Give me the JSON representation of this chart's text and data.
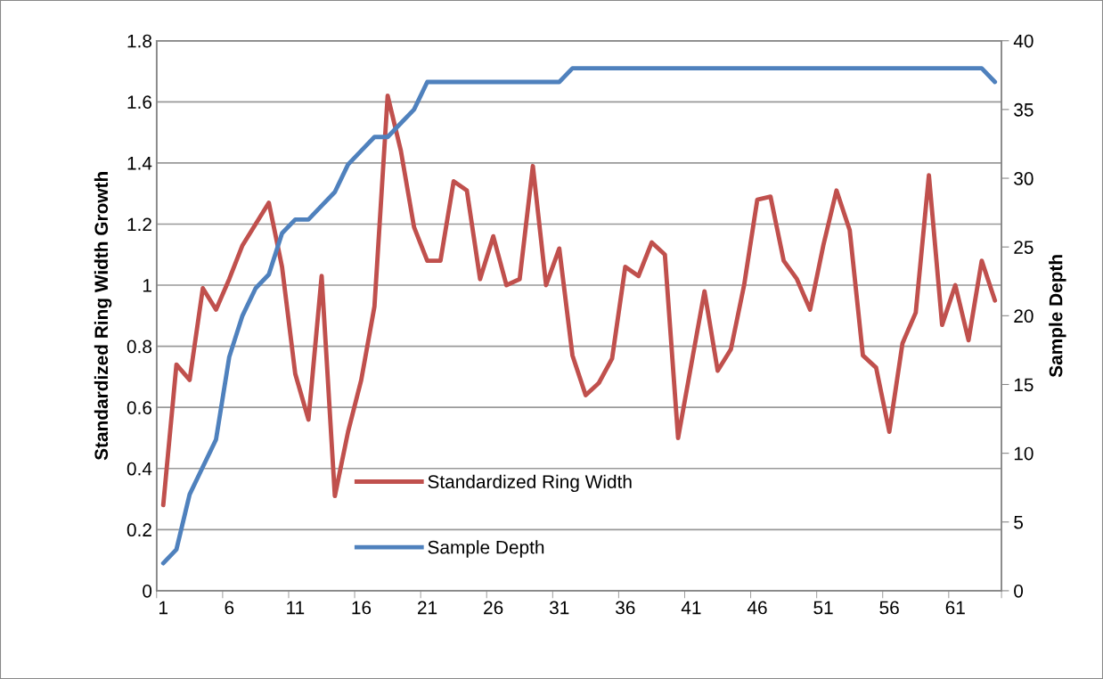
{
  "chart_data": {
    "type": "line",
    "categories": [
      "1",
      null,
      null,
      null,
      null,
      "6",
      null,
      null,
      null,
      null,
      "11",
      null,
      null,
      null,
      null,
      "16",
      null,
      null,
      null,
      null,
      "21",
      null,
      null,
      null,
      null,
      "26",
      null,
      null,
      null,
      null,
      "31",
      null,
      null,
      null,
      null,
      "36",
      null,
      null,
      null,
      null,
      "41",
      null,
      null,
      null,
      null,
      "46",
      null,
      null,
      null,
      null,
      "51",
      null,
      null,
      null,
      null,
      "56",
      null,
      null,
      null,
      null,
      "61",
      null,
      null,
      null
    ],
    "ylabel": "Standardized Ring Width Growth",
    "y2label": "Sample Depth",
    "ylim": [
      0,
      1.8
    ],
    "yticks": [
      {
        "value": 0,
        "label": "0"
      },
      {
        "value": 0.2,
        "label": "0.2"
      },
      {
        "value": 0.4,
        "label": "0.4"
      },
      {
        "value": 0.6,
        "label": "0.6"
      },
      {
        "value": 0.8,
        "label": "0.8"
      },
      {
        "value": 1,
        "label": "1"
      },
      {
        "value": 1.2,
        "label": "1.2"
      },
      {
        "value": 1.4,
        "label": "1.4"
      },
      {
        "value": 1.6,
        "label": "1.6"
      },
      {
        "value": 1.8,
        "label": "1.8"
      }
    ],
    "y2lim": [
      0,
      40
    ],
    "y2ticks": [
      0,
      5,
      10,
      15,
      20,
      25,
      30,
      35,
      40
    ],
    "grid": "y",
    "legend": "bottom",
    "marker": "none",
    "line_style": "solid",
    "series": [
      {
        "name": "Standardized Ring Width",
        "color": "#c0504d",
        "values": [
          0.28,
          0.74,
          0.69,
          0.99,
          0.92,
          1.02,
          1.13,
          1.2,
          1.27,
          1.06,
          0.71,
          0.56,
          1.03,
          0.31,
          0.52,
          0.69,
          0.93,
          1.62,
          1.44,
          1.19,
          1.08,
          1.08,
          1.34,
          1.31,
          1.02,
          1.16,
          1.0,
          1.02,
          1.39,
          1.0,
          1.12,
          0.77,
          0.64,
          0.68,
          0.76,
          1.06,
          1.03,
          1.14,
          1.1,
          0.5,
          0.74,
          0.98,
          0.72,
          0.79,
          1.0,
          1.28,
          1.29,
          1.08,
          1.02,
          0.92,
          1.13,
          1.31,
          1.18,
          0.77,
          0.73,
          0.52,
          0.81,
          0.91,
          1.36,
          0.87,
          1.0,
          0.82,
          1.08,
          0.95
        ]
      },
      {
        "name": "Sample Depth",
        "color": "#4f81bd",
        "axis": "y2",
        "values": [
          2,
          3,
          7,
          9,
          11,
          17,
          20,
          22,
          23,
          26,
          27,
          27,
          28,
          29,
          31,
          32,
          33,
          33,
          34,
          35,
          37,
          37,
          37,
          37,
          37,
          37,
          37,
          37,
          37,
          37,
          37,
          38,
          38,
          38,
          38,
          38,
          38,
          38,
          38,
          38,
          38,
          38,
          38,
          38,
          38,
          38,
          38,
          38,
          38,
          38,
          38,
          38,
          38,
          38,
          38,
          38,
          38,
          38,
          38,
          38,
          38,
          38,
          38,
          37
        ]
      }
    ]
  }
}
